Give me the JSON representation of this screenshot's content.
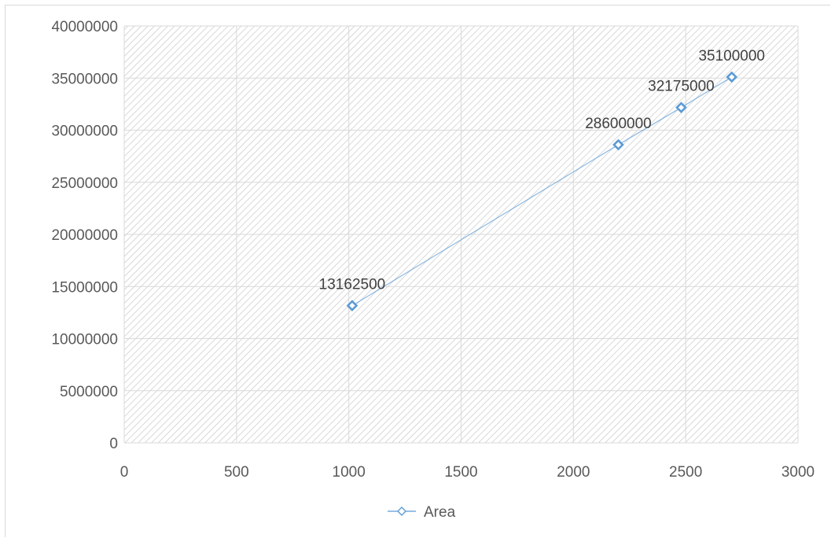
{
  "chart_data": {
    "type": "scatter",
    "title": "",
    "xlabel": "",
    "ylabel": "",
    "xlim": [
      0,
      3000
    ],
    "ylim": [
      0,
      40000000
    ],
    "x_ticks": [
      0,
      500,
      1000,
      1500,
      2000,
      2500,
      3000
    ],
    "y_ticks": [
      0,
      5000000,
      10000000,
      15000000,
      20000000,
      25000000,
      30000000,
      35000000,
      40000000
    ],
    "grid": true,
    "plot_background": "hatched",
    "legend_position": "bottom",
    "series": [
      {
        "name": "Area",
        "color": "#5b9bd5",
        "marker": "diamond",
        "line": true,
        "points": [
          {
            "x": 1015,
            "y": 13162500,
            "label": "13162500"
          },
          {
            "x": 2200,
            "y": 28600000,
            "label": "28600000"
          },
          {
            "x": 2480,
            "y": 32175000,
            "label": "32175000"
          },
          {
            "x": 2705,
            "y": 35100000,
            "label": "35100000"
          }
        ]
      }
    ]
  }
}
